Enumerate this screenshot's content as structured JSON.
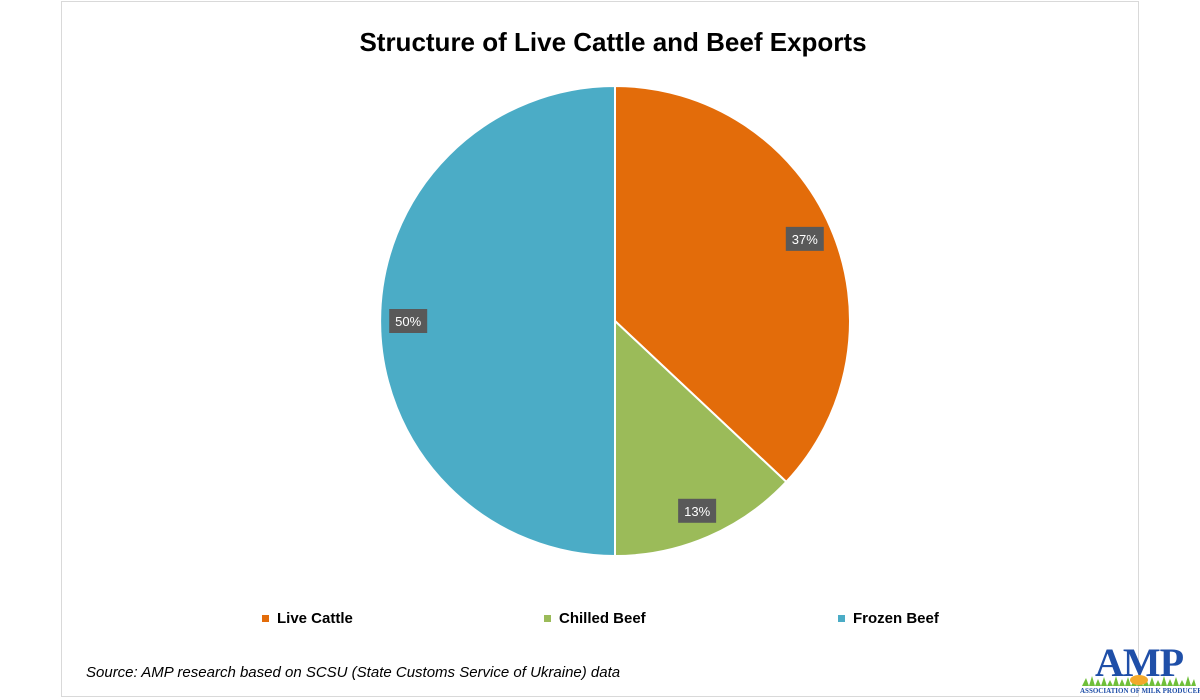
{
  "chart_data": {
    "type": "pie",
    "title": "Structure of Live Cattle and Beef Exports",
    "slices": [
      {
        "name": "Live Cattle",
        "value": 37,
        "label": "37%",
        "color": "#e36c0a"
      },
      {
        "name": "Chilled Beef",
        "value": 13,
        "label": "13%",
        "color": "#9bbb59"
      },
      {
        "name": "Frozen Beef",
        "value": 50,
        "label": "50%",
        "color": "#4bacc6"
      }
    ],
    "start_angle": "12 o'clock",
    "direction": "clockwise",
    "legend_position": "bottom",
    "data_label_style": "dark box, white text"
  },
  "source_note": "Source: AMP research based on SCSU (State Customs Service of Ukraine) data",
  "logo": {
    "text": "AMP",
    "subtitle": "ASSOCIATION OF MILK PRODUCERS",
    "primary_color": "#1f4fa8",
    "accent_color": "#f2a92b",
    "grass_color": "#6fbf3a"
  }
}
